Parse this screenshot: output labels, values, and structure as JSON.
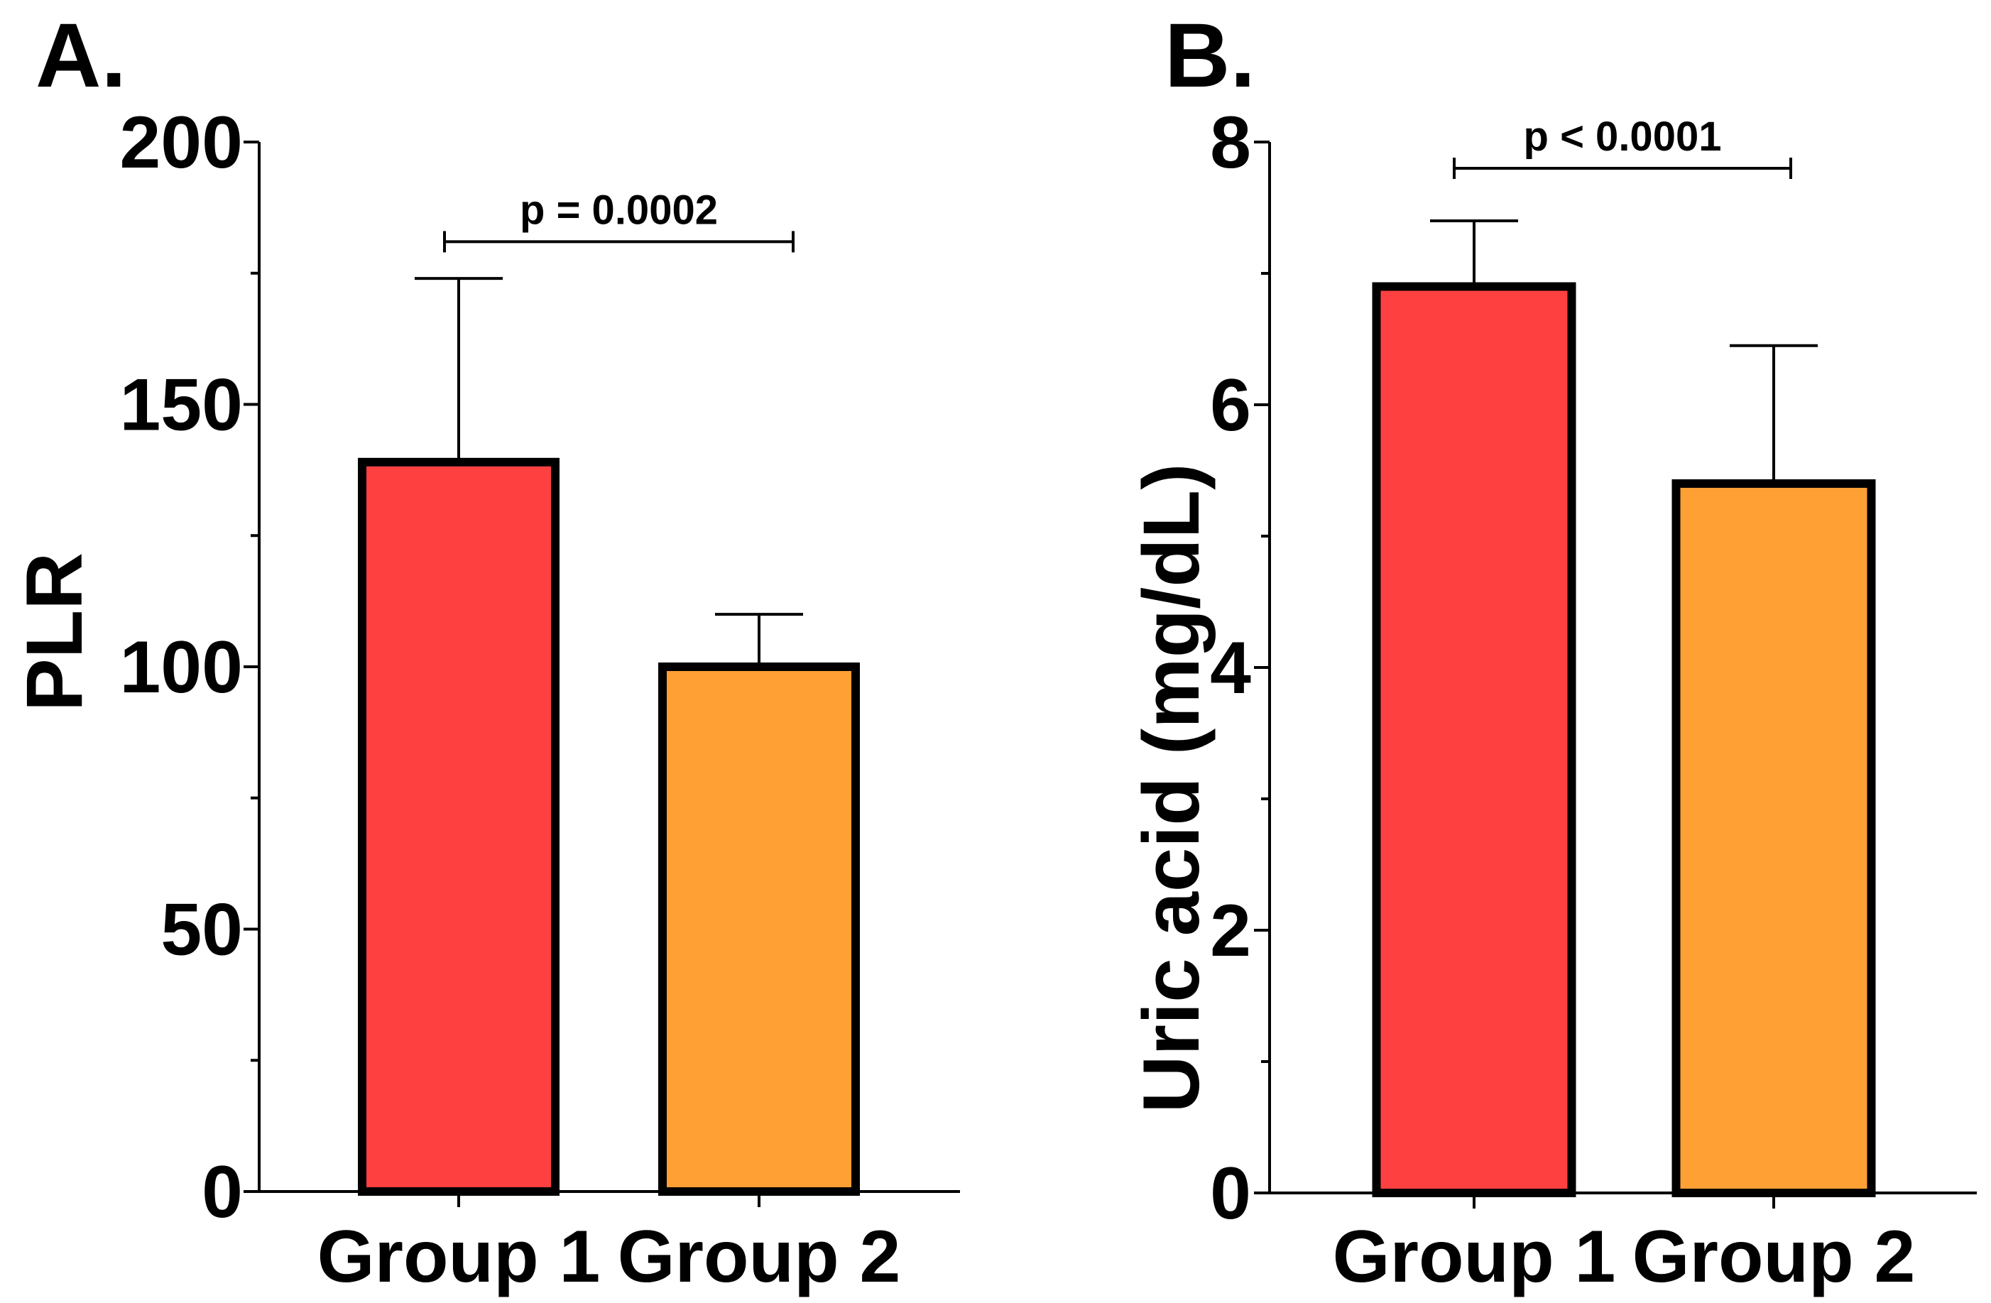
{
  "chart_data": [
    {
      "type": "bar",
      "panel_label": "A.",
      "title": "",
      "xlabel": "",
      "ylabel": "PLR",
      "categories": [
        "Group 1",
        "Group 2"
      ],
      "values": [
        139,
        100
      ],
      "error_upper": [
        174,
        110
      ],
      "ylim": [
        0,
        200
      ],
      "yticks": [
        0,
        50,
        100,
        150,
        200
      ],
      "ytick_labels": [
        "0",
        "50",
        "100",
        "150",
        "200"
      ],
      "minor_ticks": [
        25,
        75,
        125,
        175
      ],
      "colors": [
        "#FF4040",
        "#FFA035"
      ],
      "significance": {
        "label": "p = 0.0002",
        "y": 181,
        "from": 0,
        "to": 1
      }
    },
    {
      "type": "bar",
      "panel_label": "B.",
      "title": "",
      "xlabel": "",
      "ylabel": "Uric acid (mg/dL)",
      "categories": [
        "Group 1",
        "Group 2"
      ],
      "values": [
        6.9,
        5.4
      ],
      "error_upper": [
        7.4,
        6.45
      ],
      "ylim": [
        0,
        8
      ],
      "yticks": [
        0,
        2,
        4,
        6,
        8
      ],
      "ytick_labels": [
        "0",
        "2",
        "4",
        "6",
        "8"
      ],
      "minor_ticks": [
        1,
        3,
        5,
        7
      ],
      "colors": [
        "#FF4040",
        "#FFA035"
      ],
      "significance": {
        "label": "p < 0.0001",
        "y": 7.8,
        "from": 0,
        "to": 1
      }
    }
  ]
}
